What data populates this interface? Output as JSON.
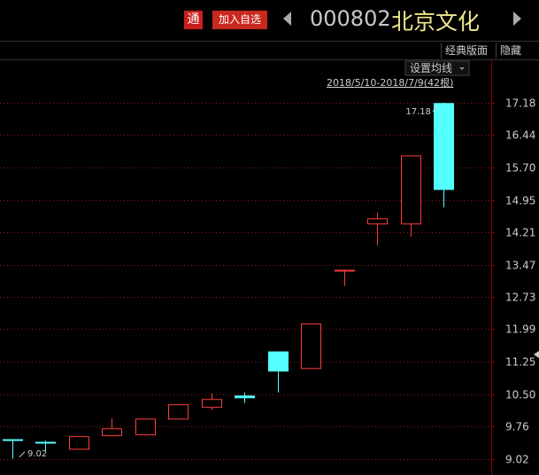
{
  "header": {
    "badge": "通",
    "button": "加入自选",
    "code": "000802",
    "name": "北京文化",
    "layout_button": "经典版面",
    "hide_button": "隐藏"
  },
  "chart_data": {
    "type": "candlestick",
    "ma_setting": "设置均线",
    "range": "2018/5/10-2018/7/9(42根)",
    "up_color": "#ff3c3c",
    "down_color": "#54ffff",
    "open": [
      9.46,
      9.4,
      9.24,
      9.55,
      9.57,
      9.93,
      10.2,
      10.46,
      11.47,
      11.09,
      13.32,
      14.4,
      14.4,
      17.16
    ],
    "close": [
      9.44,
      9.38,
      9.53,
      9.71,
      9.93,
      10.26,
      10.38,
      10.42,
      11.03,
      12.11,
      13.34,
      14.52,
      15.96,
      15.19
    ],
    "high": [
      9.46,
      9.44,
      9.53,
      9.95,
      9.93,
      10.28,
      10.52,
      10.54,
      11.47,
      12.11,
      13.34,
      14.66,
      15.96,
      17.18
    ],
    "low": [
      9.02,
      9.2,
      9.24,
      9.53,
      9.55,
      9.93,
      10.14,
      10.3,
      10.54,
      11.09,
      12.98,
      13.91,
      14.11,
      14.78
    ],
    "high_label": 17.18,
    "low_label": 9.02,
    "ylim": [
      8.65,
      18.15
    ],
    "yticks": [
      {
        "value": 9.02,
        "label": "9.02"
      },
      {
        "value": 9.76,
        "label": "9.76"
      },
      {
        "value": 10.5,
        "label": "10.50"
      },
      {
        "value": 11.25,
        "label": "11.25"
      },
      {
        "value": 11.99,
        "label": "11.99"
      },
      {
        "value": 12.73,
        "label": "12.73"
      },
      {
        "value": 13.47,
        "label": "13.47"
      },
      {
        "value": 14.21,
        "label": "14.21"
      },
      {
        "value": 14.95,
        "label": "14.95"
      },
      {
        "value": 15.7,
        "label": "15.70"
      },
      {
        "value": 16.44,
        "label": "16.44"
      },
      {
        "value": 17.18,
        "label": "17.18"
      }
    ],
    "grid": true
  }
}
